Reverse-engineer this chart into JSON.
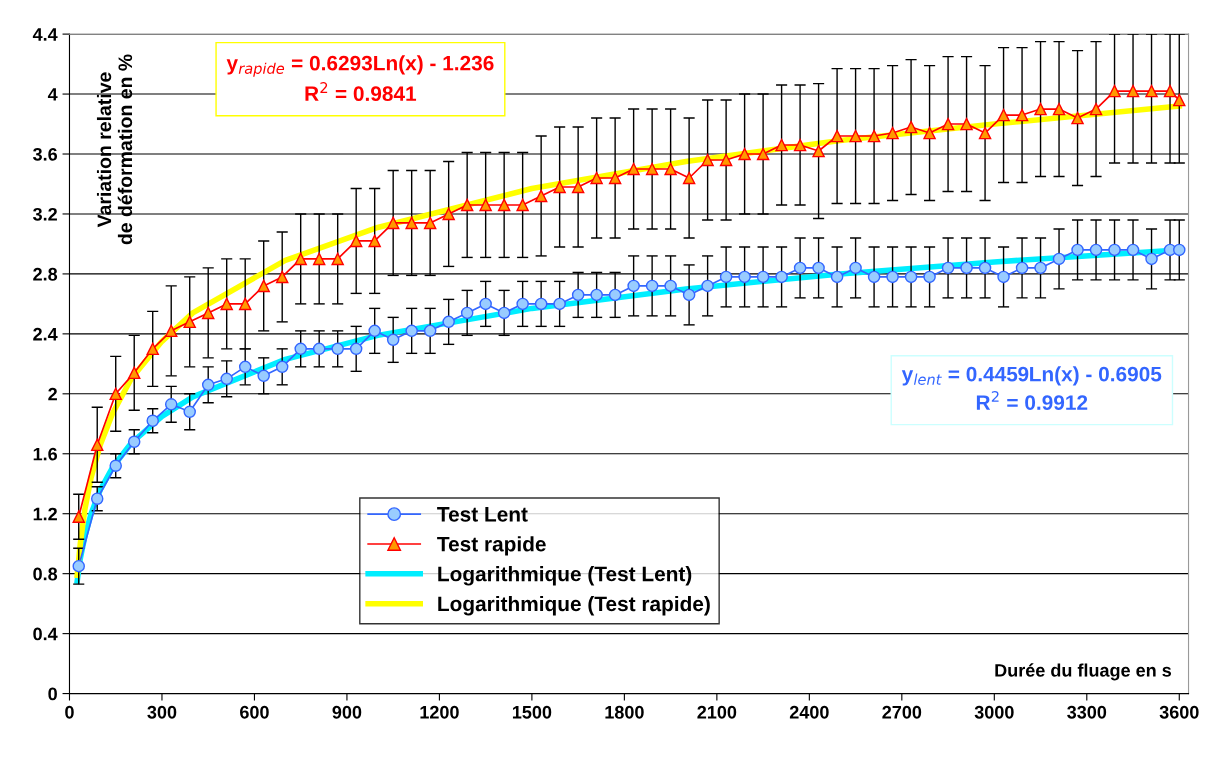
{
  "chart_data": {
    "type": "line",
    "xlabel": "Durée du fluage en s",
    "ylabel": "Variation relative\nde déformation en %",
    "xlim": [
      0,
      3630
    ],
    "xticks": [
      0,
      300,
      600,
      900,
      1200,
      1500,
      1800,
      2100,
      2400,
      2700,
      3000,
      3300,
      3600
    ],
    "ylim": [
      0,
      4.4
    ],
    "yticks": [
      0,
      0.4,
      0.8,
      1.2,
      1.6,
      2,
      2.4,
      2.8,
      3.2,
      3.6,
      4,
      4.4
    ],
    "grid": "y",
    "legend": "bottom",
    "x": [
      30,
      90,
      150,
      210,
      270,
      330,
      390,
      450,
      510,
      570,
      630,
      690,
      750,
      810,
      870,
      930,
      990,
      1050,
      1110,
      1170,
      1230,
      1290,
      1350,
      1410,
      1470,
      1530,
      1590,
      1650,
      1710,
      1770,
      1830,
      1890,
      1950,
      2010,
      2070,
      2130,
      2190,
      2250,
      2310,
      2370,
      2430,
      2490,
      2550,
      2610,
      2670,
      2730,
      2790,
      2850,
      2910,
      2970,
      3030,
      3090,
      3150,
      3210,
      3270,
      3330,
      3390,
      3450,
      3510,
      3570,
      3600
    ],
    "series": [
      {
        "name": "Test Lent",
        "marker": "circle",
        "color": "#3366ff",
        "values": [
          0.85,
          1.3,
          1.52,
          1.68,
          1.82,
          1.93,
          1.88,
          2.06,
          2.1,
          2.18,
          2.12,
          2.18,
          2.3,
          2.3,
          2.3,
          2.3,
          2.42,
          2.36,
          2.42,
          2.42,
          2.48,
          2.54,
          2.6,
          2.54,
          2.6,
          2.6,
          2.6,
          2.66,
          2.66,
          2.66,
          2.72,
          2.72,
          2.72,
          2.66,
          2.72,
          2.78,
          2.78,
          2.78,
          2.78,
          2.84,
          2.84,
          2.78,
          2.84,
          2.78,
          2.78,
          2.78,
          2.78,
          2.84,
          2.84,
          2.84,
          2.78,
          2.84,
          2.84,
          2.9,
          2.96,
          2.96,
          2.96,
          2.96,
          2.9,
          2.96,
          2.96
        ],
        "errors": [
          0.12,
          0.08,
          0.08,
          0.08,
          0.08,
          0.12,
          0.12,
          0.12,
          0.12,
          0.12,
          0.12,
          0.12,
          0.12,
          0.12,
          0.12,
          0.15,
          0.15,
          0.15,
          0.15,
          0.15,
          0.15,
          0.15,
          0.15,
          0.15,
          0.15,
          0.15,
          0.15,
          0.15,
          0.15,
          0.15,
          0.2,
          0.2,
          0.2,
          0.2,
          0.2,
          0.2,
          0.2,
          0.2,
          0.2,
          0.2,
          0.2,
          0.2,
          0.2,
          0.2,
          0.2,
          0.2,
          0.2,
          0.2,
          0.2,
          0.2,
          0.2,
          0.2,
          0.2,
          0.2,
          0.2,
          0.2,
          0.2,
          0.2,
          0.2,
          0.2,
          0.2
        ]
      },
      {
        "name": "Test rapide",
        "marker": "triangle",
        "color": "#ff0000",
        "values": [
          1.18,
          1.66,
          2.0,
          2.14,
          2.3,
          2.42,
          2.48,
          2.54,
          2.6,
          2.6,
          2.72,
          2.78,
          2.9,
          2.9,
          2.9,
          3.02,
          3.02,
          3.14,
          3.14,
          3.14,
          3.2,
          3.26,
          3.26,
          3.26,
          3.26,
          3.32,
          3.38,
          3.38,
          3.44,
          3.44,
          3.5,
          3.5,
          3.5,
          3.44,
          3.56,
          3.56,
          3.6,
          3.6,
          3.66,
          3.66,
          3.62,
          3.72,
          3.72,
          3.72,
          3.74,
          3.78,
          3.74,
          3.8,
          3.8,
          3.74,
          3.86,
          3.86,
          3.9,
          3.9,
          3.84,
          3.9,
          4.02,
          4.02,
          4.02,
          4.02,
          3.96
        ],
        "errors": [
          0.15,
          0.25,
          0.25,
          0.25,
          0.25,
          0.3,
          0.3,
          0.3,
          0.3,
          0.3,
          0.3,
          0.3,
          0.3,
          0.3,
          0.3,
          0.35,
          0.35,
          0.35,
          0.35,
          0.35,
          0.35,
          0.35,
          0.35,
          0.35,
          0.35,
          0.4,
          0.4,
          0.4,
          0.4,
          0.4,
          0.4,
          0.4,
          0.4,
          0.4,
          0.4,
          0.4,
          0.4,
          0.4,
          0.4,
          0.4,
          0.45,
          0.45,
          0.45,
          0.45,
          0.45,
          0.45,
          0.45,
          0.45,
          0.45,
          0.45,
          0.45,
          0.45,
          0.45,
          0.45,
          0.45,
          0.45,
          [
            3.54,
            4.4
          ],
          [
            3.54,
            4.4
          ],
          [
            3.54,
            4.4
          ],
          [
            3.54,
            4.4
          ],
          [
            3.54,
            4.4
          ]
        ]
      },
      {
        "name": "Logarithmique (Test Lent)",
        "marker": "none",
        "color": "#00eeff",
        "x": [
          25,
          35,
          50,
          70,
          100,
          140,
          200,
          300,
          400,
          700,
          1000,
          1500,
          2000,
          2500,
          3000,
          3600
        ],
        "values": [
          0.75,
          0.9,
          1.05,
          1.2,
          1.36,
          1.51,
          1.67,
          1.85,
          1.98,
          2.23,
          2.39,
          2.57,
          2.7,
          2.8,
          2.88,
          2.96
        ]
      },
      {
        "name": "Logarithmique (Test rapide)",
        "marker": "none",
        "color": "#ffff00",
        "x": [
          25,
          35,
          50,
          70,
          100,
          140,
          200,
          300,
          400,
          700,
          1000,
          1500,
          2000,
          2500,
          3000,
          3600
        ],
        "values": [
          0.79,
          1.0,
          1.23,
          1.44,
          1.66,
          1.87,
          2.1,
          2.35,
          2.54,
          2.89,
          3.11,
          3.37,
          3.55,
          3.69,
          3.8,
          3.92
        ]
      }
    ],
    "annotations": [
      "y$_{rapide}$ = 0.6293Ln(x) - 1.236\nR$^{2}$ = 0.9841",
      "y$_{lent}$ = 0.4459Ln(x) - 0.6905\nR$^{2}$ = 0.9912"
    ]
  }
}
